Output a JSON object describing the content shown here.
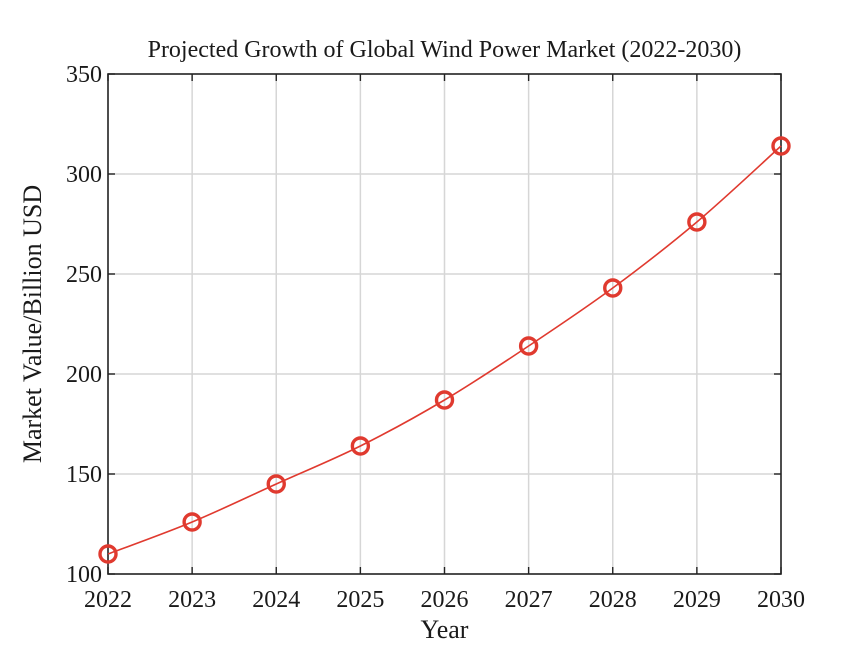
{
  "chart_data": {
    "type": "line",
    "title": "Projected Growth of Global Wind Power Market (2022-2030)",
    "xlabel": "Year",
    "ylabel": "Market Value/Billion USD",
    "x": [
      2022,
      2023,
      2024,
      2025,
      2026,
      2027,
      2028,
      2029,
      2030
    ],
    "xlim": [
      2022,
      2030
    ],
    "ylim": [
      100,
      350
    ],
    "x_ticks": [
      "2022",
      "2023",
      "2024",
      "2025",
      "2026",
      "2027",
      "2028",
      "2029",
      "2030"
    ],
    "y_ticks": [
      "100",
      "150",
      "200",
      "250",
      "300",
      "350"
    ],
    "grid": true,
    "series": [
      {
        "name": "Market Value",
        "color": "#e03a2f",
        "marker": "circle",
        "values": [
          110,
          126,
          145,
          164,
          187,
          214,
          243,
          276,
          314
        ]
      }
    ]
  }
}
